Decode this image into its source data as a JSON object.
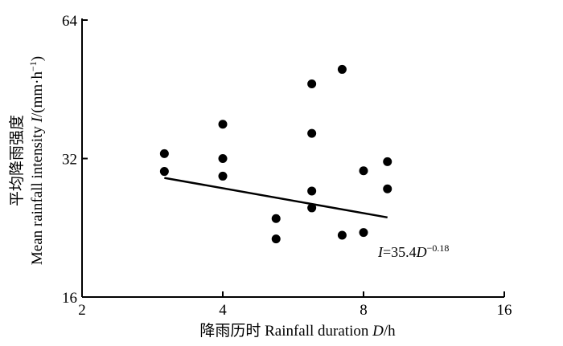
{
  "chart_data": {
    "type": "scatter",
    "title": "",
    "xlabel_parts": [
      {
        "t": "降雨历时 Rainfall duration ",
        "i": false
      },
      {
        "t": "D",
        "i": true
      },
      {
        "t": "/h",
        "i": false
      }
    ],
    "ylabel_line1": "平均降雨强度",
    "ylabel_line2_parts": [
      {
        "t": "Mean rainfall intensity ",
        "i": false
      },
      {
        "t": "I",
        "i": true
      },
      {
        "t": "/(mm·h",
        "i": false
      },
      {
        "t": "−1",
        "sup": true
      },
      {
        "t": ")",
        "i": false
      }
    ],
    "x_scale": "log2",
    "y_scale": "log2",
    "xlim": [
      2,
      16
    ],
    "ylim": [
      16,
      64
    ],
    "x_ticks": [
      2,
      4,
      8,
      16
    ],
    "y_ticks": [
      16,
      32,
      64
    ],
    "x_tick_labels": [
      "2",
      "4",
      "8",
      "16"
    ],
    "y_tick_labels": [
      "16",
      "32",
      "64"
    ],
    "grid": false,
    "points": [
      {
        "x": 3.0,
        "y": 32.8
      },
      {
        "x": 3.0,
        "y": 30.0
      },
      {
        "x": 4.0,
        "y": 38.0
      },
      {
        "x": 4.0,
        "y": 32.0
      },
      {
        "x": 4.0,
        "y": 29.3
      },
      {
        "x": 5.2,
        "y": 23.7
      },
      {
        "x": 5.2,
        "y": 21.4
      },
      {
        "x": 6.2,
        "y": 46.5
      },
      {
        "x": 6.2,
        "y": 36.3
      },
      {
        "x": 6.2,
        "y": 27.2
      },
      {
        "x": 6.2,
        "y": 25.0
      },
      {
        "x": 7.2,
        "y": 50.0
      },
      {
        "x": 7.2,
        "y": 21.8
      },
      {
        "x": 8.0,
        "y": 30.1
      },
      {
        "x": 8.0,
        "y": 22.1
      },
      {
        "x": 9.0,
        "y": 31.5
      },
      {
        "x": 9.0,
        "y": 27.5
      }
    ],
    "fit": {
      "a": 35.4,
      "b": -0.18,
      "x_range": [
        3.0,
        9.0
      ],
      "label_parts": [
        {
          "t": "I",
          "i": true
        },
        {
          "t": "=35.4",
          "i": false
        },
        {
          "t": "D",
          "i": true
        },
        {
          "t": "−0.18",
          "sup": true
        }
      ]
    }
  }
}
